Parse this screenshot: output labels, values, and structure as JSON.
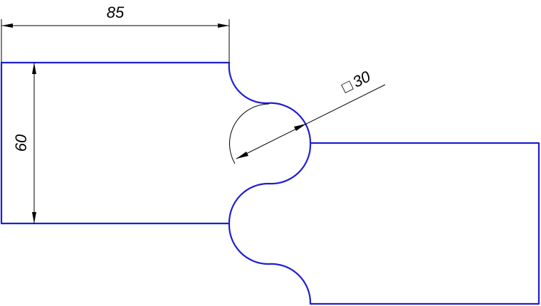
{
  "dimensions": {
    "width_label": "85",
    "height_label": "60",
    "diameter_symbol": "□",
    "diameter_value": "30"
  },
  "colors": {
    "outline": "#1f1fd0",
    "dimension": "#000000",
    "background": "#ffffff"
  }
}
